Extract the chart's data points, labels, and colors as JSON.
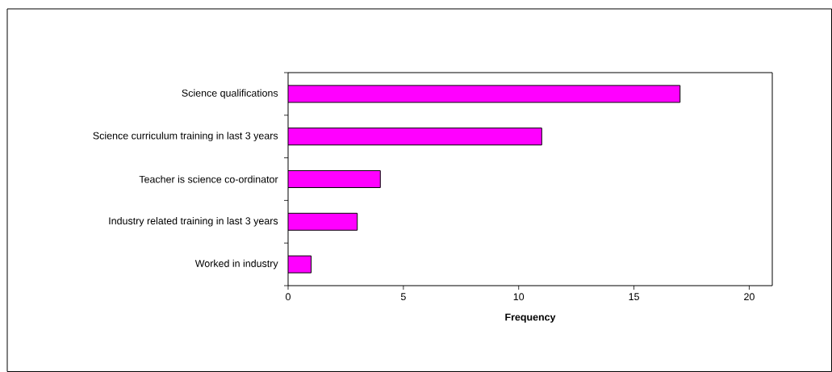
{
  "chart_data": {
    "type": "bar",
    "orientation": "horizontal",
    "xlabel": "Frequency",
    "categories": [
      "Science qualifications",
      "Science curriculum training in last 3 years",
      "Teacher is science co-ordinator",
      "Industry related training in last 3 years",
      "Worked in industry"
    ],
    "values": [
      17,
      11,
      4,
      3,
      1
    ],
    "color": "#ff00ff",
    "xlim": [
      0,
      21
    ],
    "xticks": [
      0,
      5,
      10,
      15,
      20
    ],
    "grid": false
  }
}
